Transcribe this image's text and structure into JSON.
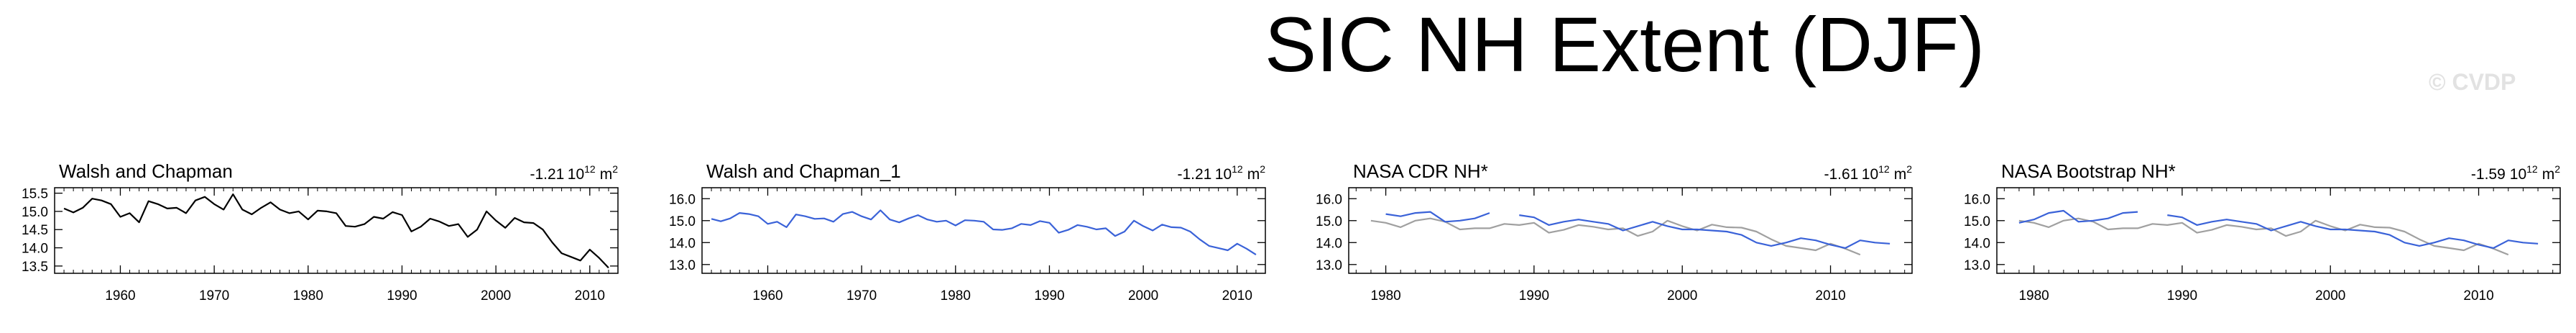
{
  "title": "SIC NH Extent (DJF)",
  "watermark": "© CVDP",
  "colors": {
    "obs": "#000000",
    "primary": "#3a62d8",
    "secondary": "#a0a0a0"
  },
  "chart_data": [
    {
      "type": "line",
      "title": "Walsh and Chapman",
      "trend": "-1.21",
      "trend_unit_base": "10",
      "trend_unit_exp": "12",
      "trend_unit_m": "m",
      "trend_unit_m_exp": "2",
      "xlim": [
        1953,
        2013
      ],
      "ylim": [
        13.3,
        15.65
      ],
      "xticks": [
        1960,
        1970,
        1980,
        1990,
        2000,
        2010
      ],
      "yticks": [
        "13.5",
        "14.0",
        "14.5",
        "15.0",
        "15.5"
      ],
      "series": [
        {
          "color": "#000000",
          "x": [
            1954,
            1955,
            1956,
            1957,
            1958,
            1959,
            1960,
            1961,
            1962,
            1963,
            1964,
            1965,
            1966,
            1967,
            1968,
            1969,
            1970,
            1971,
            1972,
            1973,
            1974,
            1975,
            1976,
            1977,
            1978,
            1979,
            1980,
            1981,
            1982,
            1983,
            1984,
            1985,
            1986,
            1987,
            1988,
            1989,
            1990,
            1991,
            1992,
            1993,
            1994,
            1995,
            1996,
            1997,
            1998,
            1999,
            2000,
            2001,
            2002,
            2003,
            2004,
            2005,
            2006,
            2007,
            2008,
            2009,
            2010,
            2011,
            2012
          ],
          "y": [
            15.08,
            14.97,
            15.1,
            15.35,
            15.3,
            15.2,
            14.85,
            14.95,
            14.7,
            15.28,
            15.2,
            15.08,
            15.1,
            14.95,
            15.3,
            15.4,
            15.2,
            15.05,
            15.47,
            15.05,
            14.92,
            15.1,
            15.25,
            15.05,
            14.95,
            15.0,
            14.78,
            15.02,
            15.0,
            14.95,
            14.6,
            14.58,
            14.65,
            14.85,
            14.8,
            14.98,
            14.9,
            14.45,
            14.58,
            14.8,
            14.72,
            14.6,
            14.65,
            14.3,
            14.5,
            15.0,
            14.75,
            14.55,
            14.82,
            14.7,
            14.68,
            14.5,
            14.15,
            13.85,
            13.75,
            13.65,
            13.95,
            13.72,
            13.45
          ]
        }
      ]
    },
    {
      "type": "line",
      "title": "Walsh and Chapman_1",
      "trend": "-1.21",
      "trend_unit_base": "10",
      "trend_unit_exp": "12",
      "trend_unit_m": "m",
      "trend_unit_m_exp": "2",
      "xlim": [
        1953,
        2013
      ],
      "ylim": [
        12.6,
        16.5
      ],
      "xticks": [
        1960,
        1970,
        1980,
        1990,
        2000,
        2010
      ],
      "yticks": [
        "13.0",
        "14.0",
        "15.0",
        "16.0"
      ],
      "series": [
        {
          "color": "#3a62d8",
          "x": [
            1954,
            1955,
            1956,
            1957,
            1958,
            1959,
            1960,
            1961,
            1962,
            1963,
            1964,
            1965,
            1966,
            1967,
            1968,
            1969,
            1970,
            1971,
            1972,
            1973,
            1974,
            1975,
            1976,
            1977,
            1978,
            1979,
            1980,
            1981,
            1982,
            1983,
            1984,
            1985,
            1986,
            1987,
            1988,
            1989,
            1990,
            1991,
            1992,
            1993,
            1994,
            1995,
            1996,
            1997,
            1998,
            1999,
            2000,
            2001,
            2002,
            2003,
            2004,
            2005,
            2006,
            2007,
            2008,
            2009,
            2010,
            2011,
            2012
          ],
          "y": [
            15.08,
            14.97,
            15.1,
            15.35,
            15.3,
            15.2,
            14.85,
            14.95,
            14.7,
            15.28,
            15.2,
            15.08,
            15.1,
            14.95,
            15.3,
            15.4,
            15.2,
            15.05,
            15.47,
            15.05,
            14.92,
            15.1,
            15.25,
            15.05,
            14.95,
            15.0,
            14.78,
            15.02,
            15.0,
            14.95,
            14.6,
            14.58,
            14.65,
            14.85,
            14.8,
            14.98,
            14.9,
            14.45,
            14.58,
            14.8,
            14.72,
            14.6,
            14.65,
            14.3,
            14.5,
            15.0,
            14.75,
            14.55,
            14.82,
            14.7,
            14.68,
            14.5,
            14.15,
            13.85,
            13.75,
            13.65,
            13.95,
            13.72,
            13.45
          ]
        }
      ]
    },
    {
      "type": "line",
      "title": "NASA CDR NH*",
      "trend": "-1.61",
      "trend_unit_base": "10",
      "trend_unit_exp": "12",
      "trend_unit_m": "m",
      "trend_unit_m_exp": "2",
      "xlim": [
        1977.5,
        2015.5
      ],
      "ylim": [
        12.6,
        16.5
      ],
      "xticks": [
        1980,
        1990,
        2000,
        2010
      ],
      "yticks": [
        "13.0",
        "14.0",
        "15.0",
        "16.0"
      ],
      "series": [
        {
          "color": "#a0a0a0",
          "x": [
            1979,
            1980,
            1981,
            1982,
            1983,
            1984,
            1985,
            1986,
            1987,
            1988,
            1989,
            1990,
            1991,
            1992,
            1993,
            1994,
            1995,
            1996,
            1997,
            1998,
            1999,
            2000,
            2001,
            2002,
            2003,
            2004,
            2005,
            2006,
            2007,
            2008,
            2009,
            2010,
            2011,
            2012
          ],
          "y": [
            15.0,
            14.9,
            14.7,
            15.0,
            15.1,
            14.95,
            14.6,
            14.65,
            14.65,
            14.85,
            14.8,
            14.9,
            14.45,
            14.58,
            14.8,
            14.72,
            14.6,
            14.65,
            14.3,
            14.5,
            15.0,
            14.75,
            14.55,
            14.82,
            14.7,
            14.68,
            14.5,
            14.15,
            13.85,
            13.75,
            13.65,
            13.95,
            13.72,
            13.45
          ]
        },
        {
          "color": "#3a62d8",
          "x": [
            1980,
            1981,
            1982,
            1983,
            1984,
            1985,
            1986,
            1987
          ],
          "y": [
            15.3,
            15.2,
            15.35,
            15.4,
            14.95,
            15.0,
            15.1,
            15.35
          ]
        },
        {
          "color": "#3a62d8",
          "x": [
            1989,
            1990,
            1991,
            1992,
            1993,
            1994,
            1995,
            1996,
            1997,
            1998,
            1999,
            2000,
            2001,
            2002,
            2003,
            2004,
            2005,
            2006,
            2007,
            2008,
            2009,
            2010,
            2011,
            2012,
            2013,
            2014
          ],
          "y": [
            15.25,
            15.15,
            14.8,
            14.95,
            15.05,
            14.95,
            14.85,
            14.55,
            14.75,
            14.95,
            14.75,
            14.6,
            14.6,
            14.55,
            14.5,
            14.35,
            14.0,
            13.85,
            14.0,
            14.2,
            14.1,
            13.9,
            13.75,
            14.1,
            14.0,
            13.95
          ]
        }
      ]
    },
    {
      "type": "line",
      "title": "NASA Bootstrap NH*",
      "trend": "-1.59",
      "trend_unit_base": "10",
      "trend_unit_exp": "12",
      "trend_unit_m": "m",
      "trend_unit_m_exp": "2",
      "xlim": [
        1977.5,
        2015.5
      ],
      "ylim": [
        12.6,
        16.5
      ],
      "xticks": [
        1980,
        1990,
        2000,
        2010
      ],
      "yticks": [
        "13.0",
        "14.0",
        "15.0",
        "16.0"
      ],
      "series": [
        {
          "color": "#a0a0a0",
          "x": [
            1979,
            1980,
            1981,
            1982,
            1983,
            1984,
            1985,
            1986,
            1987,
            1988,
            1989,
            1990,
            1991,
            1992,
            1993,
            1994,
            1995,
            1996,
            1997,
            1998,
            1999,
            2000,
            2001,
            2002,
            2003,
            2004,
            2005,
            2006,
            2007,
            2008,
            2009,
            2010,
            2011,
            2012
          ],
          "y": [
            15.0,
            14.9,
            14.7,
            15.0,
            15.1,
            14.95,
            14.6,
            14.65,
            14.65,
            14.85,
            14.8,
            14.9,
            14.45,
            14.58,
            14.8,
            14.72,
            14.6,
            14.65,
            14.3,
            14.5,
            15.0,
            14.75,
            14.55,
            14.82,
            14.7,
            14.68,
            14.5,
            14.15,
            13.85,
            13.75,
            13.65,
            13.95,
            13.72,
            13.45
          ]
        },
        {
          "color": "#3a62d8",
          "x": [
            1979,
            1980,
            1981,
            1982,
            1983,
            1984,
            1985,
            1986,
            1987
          ],
          "y": [
            14.9,
            15.05,
            15.35,
            15.45,
            14.95,
            15.0,
            15.1,
            15.35,
            15.4
          ]
        },
        {
          "color": "#3a62d8",
          "x": [
            1989,
            1990,
            1991,
            1992,
            1993,
            1994,
            1995,
            1996,
            1997,
            1998,
            1999,
            2000,
            2001,
            2002,
            2003,
            2004,
            2005,
            2006,
            2007,
            2008,
            2009,
            2010,
            2011,
            2012,
            2013,
            2014
          ],
          "y": [
            15.25,
            15.15,
            14.8,
            14.95,
            15.05,
            14.95,
            14.85,
            14.55,
            14.75,
            14.95,
            14.75,
            14.6,
            14.6,
            14.55,
            14.5,
            14.35,
            14.0,
            13.85,
            14.0,
            14.2,
            14.1,
            13.9,
            13.75,
            14.1,
            14.0,
            13.95
          ]
        }
      ]
    }
  ]
}
